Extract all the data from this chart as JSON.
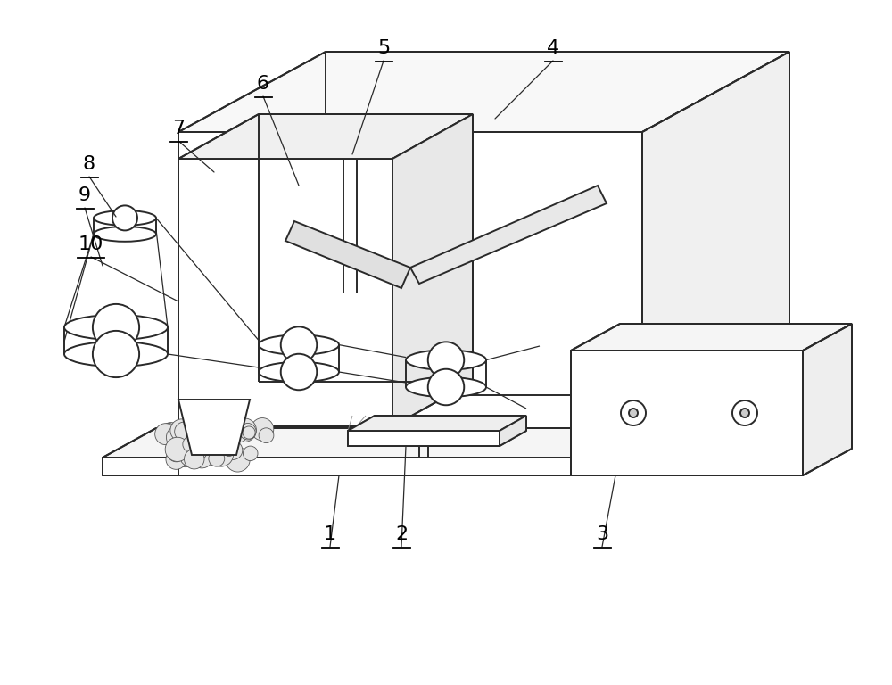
{
  "bg_color": "#ffffff",
  "lc": "#2a2a2a",
  "lw": 1.4,
  "tlw": 0.9,
  "fs": 16,
  "fig_w": 10.0,
  "fig_h": 7.68,
  "dpi": 100
}
